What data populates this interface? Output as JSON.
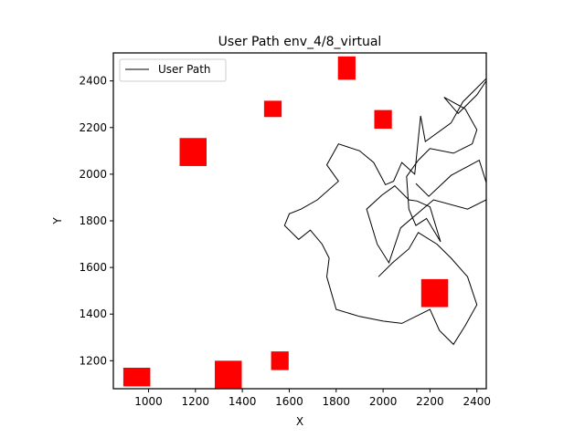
{
  "chart_data": {
    "type": "line",
    "title": "User Path env_4/8_virtual",
    "xlabel": "X",
    "ylabel": "Y",
    "xlim": [
      850,
      2440
    ],
    "ylim": [
      1080,
      2520
    ],
    "x_ticks": [
      1000,
      1200,
      1400,
      1600,
      1800,
      2000,
      2200,
      2400
    ],
    "y_ticks": [
      1200,
      1400,
      1600,
      1800,
      2000,
      2200,
      2400
    ],
    "grid": false,
    "legend": {
      "placement": "top-left",
      "entries": [
        "User Path"
      ]
    },
    "colors": {
      "path": "#000000",
      "obstacle": "#ff0000"
    },
    "series": [
      {
        "name": "User Path",
        "points": [
          [
            2140,
            1960
          ],
          [
            2195,
            1905
          ],
          [
            2290,
            1995
          ],
          [
            2410,
            2060
          ],
          [
            2460,
            1900
          ],
          [
            2360,
            1850
          ],
          [
            2215,
            1890
          ],
          [
            2075,
            1770
          ],
          [
            2025,
            1620
          ],
          [
            1975,
            1700
          ],
          [
            1930,
            1850
          ],
          [
            1995,
            1910
          ],
          [
            2050,
            1950
          ],
          [
            2110,
            1890
          ],
          [
            2145,
            1885
          ],
          [
            2200,
            1860
          ],
          [
            2245,
            1710
          ],
          [
            2185,
            1810
          ],
          [
            2140,
            1780
          ],
          [
            2110,
            1850
          ],
          [
            2100,
            1990
          ],
          [
            2150,
            2060
          ],
          [
            2200,
            2110
          ],
          [
            2300,
            2090
          ],
          [
            2380,
            2130
          ],
          [
            2400,
            2190
          ],
          [
            2350,
            2280
          ],
          [
            2260,
            2330
          ],
          [
            2320,
            2260
          ],
          [
            2400,
            2340
          ],
          [
            2460,
            2430
          ],
          [
            2340,
            2310
          ],
          [
            2290,
            2220
          ],
          [
            2180,
            2140
          ],
          [
            2160,
            2250
          ],
          [
            2135,
            2000
          ],
          [
            2080,
            2050
          ],
          [
            2045,
            1970
          ],
          [
            2010,
            1955
          ],
          [
            1960,
            2050
          ],
          [
            1900,
            2100
          ],
          [
            1810,
            2130
          ],
          [
            1760,
            2040
          ],
          [
            1810,
            1970
          ],
          [
            1720,
            1890
          ],
          [
            1650,
            1850
          ],
          [
            1600,
            1830
          ],
          [
            1580,
            1780
          ],
          [
            1640,
            1720
          ],
          [
            1690,
            1760
          ],
          [
            1740,
            1700
          ],
          [
            1770,
            1640
          ],
          [
            1760,
            1560
          ],
          [
            1800,
            1420
          ],
          [
            1900,
            1390
          ],
          [
            2000,
            1370
          ],
          [
            2080,
            1360
          ],
          [
            2200,
            1420
          ],
          [
            2240,
            1330
          ],
          [
            2300,
            1270
          ],
          [
            2350,
            1350
          ],
          [
            2400,
            1440
          ],
          [
            2360,
            1560
          ],
          [
            2290,
            1640
          ],
          [
            2230,
            1700
          ],
          [
            2150,
            1750
          ],
          [
            2110,
            1680
          ],
          [
            2040,
            1620
          ],
          [
            1980,
            1560
          ]
        ]
      }
    ],
    "obstacles": [
      {
        "x": 1845,
        "y": 2455,
        "w": 75,
        "h": 100
      },
      {
        "x": 1530,
        "y": 2280,
        "w": 75,
        "h": 70
      },
      {
        "x": 2000,
        "y": 2235,
        "w": 75,
        "h": 80
      },
      {
        "x": 1190,
        "y": 2095,
        "w": 115,
        "h": 120
      },
      {
        "x": 2220,
        "y": 1490,
        "w": 115,
        "h": 120
      },
      {
        "x": 1560,
        "y": 1200,
        "w": 75,
        "h": 80
      },
      {
        "x": 950,
        "y": 1130,
        "w": 115,
        "h": 80
      },
      {
        "x": 1340,
        "y": 1140,
        "w": 115,
        "h": 120
      }
    ]
  }
}
